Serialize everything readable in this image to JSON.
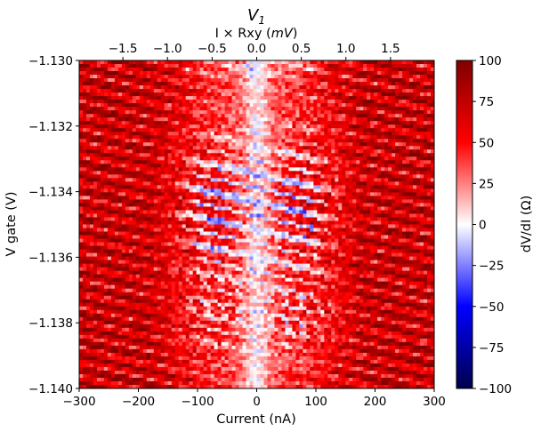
{
  "chart_data": {
    "type": "heatmap",
    "title": "V",
    "title_subscript": "1",
    "xlabel": "Current (nA)",
    "ylabel": "V gate (V)",
    "top_xlabel_prefix": "I × Rxy (",
    "top_xlabel_unit": "mV",
    "top_xlabel_suffix": ")",
    "colorbar_label": "dV/dI (Ω)",
    "colormap": "seismic",
    "colors": {
      "low": "#00004c",
      "mid": "#ffffff",
      "high": "#800000",
      "blue": "#0000ff",
      "red": "#ff0000"
    },
    "x_range": [
      -300,
      300
    ],
    "y_range": [
      -1.14,
      -1.13
    ],
    "c_range": [
      -100,
      100
    ],
    "grid": false,
    "x_ticks": [
      {
        "value": -300,
        "label": "−300"
      },
      {
        "value": -200,
        "label": "−200"
      },
      {
        "value": -100,
        "label": "−100"
      },
      {
        "value": 0,
        "label": "0"
      },
      {
        "value": 100,
        "label": "100"
      },
      {
        "value": 200,
        "label": "200"
      },
      {
        "value": 300,
        "label": "300"
      }
    ],
    "top_ticks": [
      {
        "value": -1.5,
        "label": "−1.5"
      },
      {
        "value": -1.0,
        "label": "−1.0"
      },
      {
        "value": -0.5,
        "label": "−0.5"
      },
      {
        "value": 0.0,
        "label": "0.0"
      },
      {
        "value": 0.5,
        "label": "0.5"
      },
      {
        "value": 1.0,
        "label": "1.0"
      },
      {
        "value": 1.5,
        "label": "1.5"
      }
    ],
    "top_range": [
      -1.99,
      1.99
    ],
    "y_ticks": [
      {
        "value": -1.13,
        "label": "−1.130"
      },
      {
        "value": -1.132,
        "label": "−1.132"
      },
      {
        "value": -1.134,
        "label": "−1.134"
      },
      {
        "value": -1.136,
        "label": "−1.136"
      },
      {
        "value": -1.138,
        "label": "−1.138"
      },
      {
        "value": -1.14,
        "label": "−1.140"
      }
    ],
    "c_ticks": [
      {
        "value": 100,
        "label": "100"
      },
      {
        "value": 75,
        "label": "75"
      },
      {
        "value": 50,
        "label": "50"
      },
      {
        "value": 25,
        "label": "25"
      },
      {
        "value": 0,
        "label": "0"
      },
      {
        "value": -25,
        "label": "−25"
      },
      {
        "value": -50,
        "label": "−50"
      },
      {
        "value": -75,
        "label": "−75"
      },
      {
        "value": -100,
        "label": "−100"
      }
    ]
  }
}
